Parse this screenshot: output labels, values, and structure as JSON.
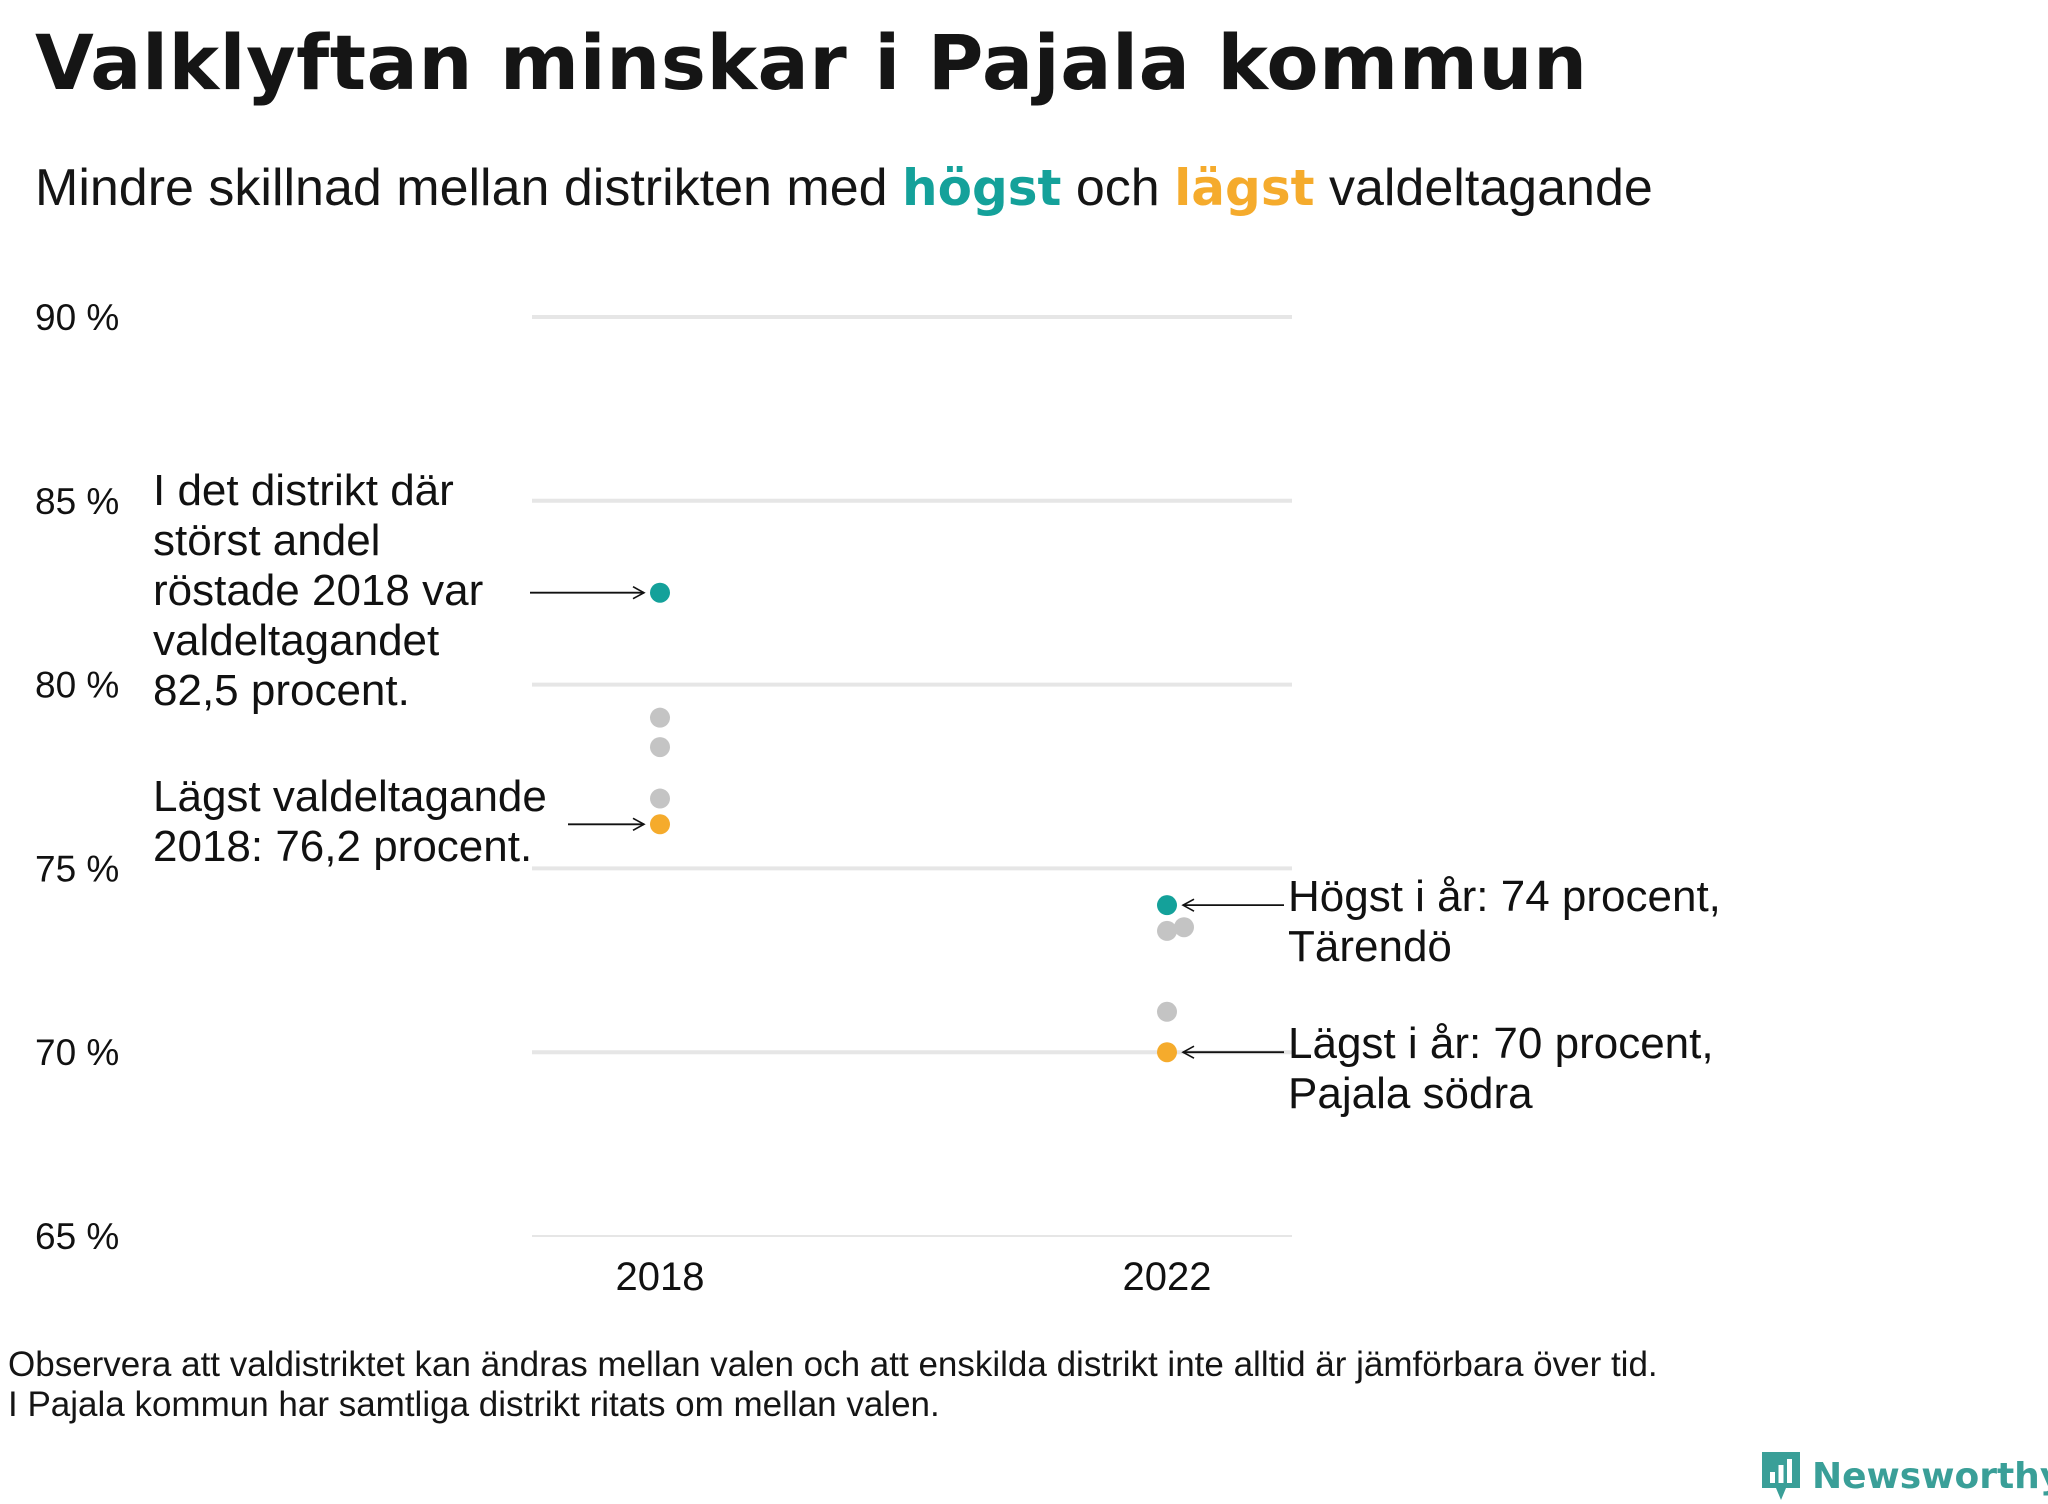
{
  "title": "Valklyftan minskar i Pajala kommun",
  "subtitle": {
    "part1": "Mindre  skillnad  mellan  distrikten   med ",
    "high_word": "högst",
    "part2": " och ",
    "low_word": "lägst",
    "part3": " valdeltagande"
  },
  "colors": {
    "high": "#14a19a",
    "low": "#f5ab2c",
    "other": "#c4c4c4",
    "grid": "#e6e6e6"
  },
  "chart_data": {
    "type": "scatter",
    "x_categories": [
      "2018",
      "2022"
    ],
    "ylim": [
      65,
      90
    ],
    "yticks": [
      90,
      85,
      80,
      75,
      70,
      65
    ],
    "ytick_labels": [
      "90 %",
      "85 %",
      "80 %",
      "75 %",
      "70 %",
      "65 %"
    ],
    "grid": true,
    "points": [
      {
        "x": "2018",
        "y": 82.5,
        "kind": "high"
      },
      {
        "x": "2018",
        "y": 79.1,
        "kind": "other"
      },
      {
        "x": "2018",
        "y": 78.3,
        "kind": "other"
      },
      {
        "x": "2018",
        "y": 76.9,
        "kind": "other"
      },
      {
        "x": "2018",
        "y": 76.2,
        "kind": "low"
      },
      {
        "x": "2022",
        "y": 74.0,
        "kind": "high"
      },
      {
        "x": "2022",
        "y": 73.3,
        "kind": "other"
      },
      {
        "x": "2022",
        "y": 73.4,
        "kind": "other"
      },
      {
        "x": "2022",
        "y": 71.1,
        "kind": "other"
      },
      {
        "x": "2022",
        "y": 70.0,
        "kind": "low"
      }
    ],
    "annotations": [
      {
        "lines": [
          "I det distrikt där",
          "störst andel",
          "röstade 2018 var",
          "valdeltagandet",
          "82,5 procent."
        ],
        "target": {
          "x": "2018",
          "y": 82.5
        },
        "side": "left"
      },
      {
        "lines": [
          "Lägst valdeltagande",
          "2018: 76,2 procent."
        ],
        "target": {
          "x": "2018",
          "y": 76.2
        },
        "side": "left"
      },
      {
        "lines": [
          "Högst i år: 74 procent,",
          "Tärendö"
        ],
        "target": {
          "x": "2022",
          "y": 74.0
        },
        "side": "right"
      },
      {
        "lines": [
          "Lägst i år: 70 procent,",
          "Pajala södra"
        ],
        "target": {
          "x": "2022",
          "y": 70.0
        },
        "side": "right"
      }
    ]
  },
  "footnote": [
    "Observera att valdistriktet kan ändras mellan valen och att enskilda distrikt inte alltid är jämförbara över tid.",
    "I Pajala kommun har samtliga distrikt ritats om mellan valen."
  ],
  "brand": "Newsworthy",
  "brand_icon": "newsworthy-logo-icon"
}
